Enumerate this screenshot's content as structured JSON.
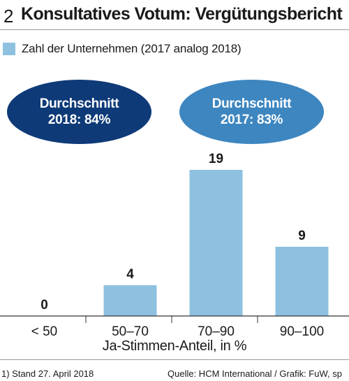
{
  "header": {
    "number": "2",
    "title": "Konsultatives Votum: Vergütungsbericht"
  },
  "legend": {
    "label": "Zahl der Unternehmen (2017 analog 2018)"
  },
  "callouts": {
    "avg_2018": {
      "line1": "Durchschnitt",
      "line2": "2018: 84%"
    },
    "avg_2017": {
      "line1": "Durchschnitt",
      "line2": "2017: 83%"
    }
  },
  "colors": {
    "bar": "#8ec1e0",
    "ellipse_2018": "#0e3a78",
    "ellipse_2017": "#3d86c0",
    "axis": "#333333"
  },
  "chart_data": {
    "type": "bar",
    "categories": [
      "< 50",
      "50–70",
      "70–90",
      "90–100"
    ],
    "values": [
      0,
      4,
      19,
      9
    ],
    "xlabel": "Ja-Stimmen-Anteil, in %",
    "ylabel": "",
    "ylim": [
      0,
      19
    ],
    "data_labels": true,
    "legend": "top-left",
    "grid": false
  },
  "footer": {
    "footnote": "1) Stand 27. April 2018",
    "source": "Quelle: HCM International / Grafik: FuW, sp"
  }
}
